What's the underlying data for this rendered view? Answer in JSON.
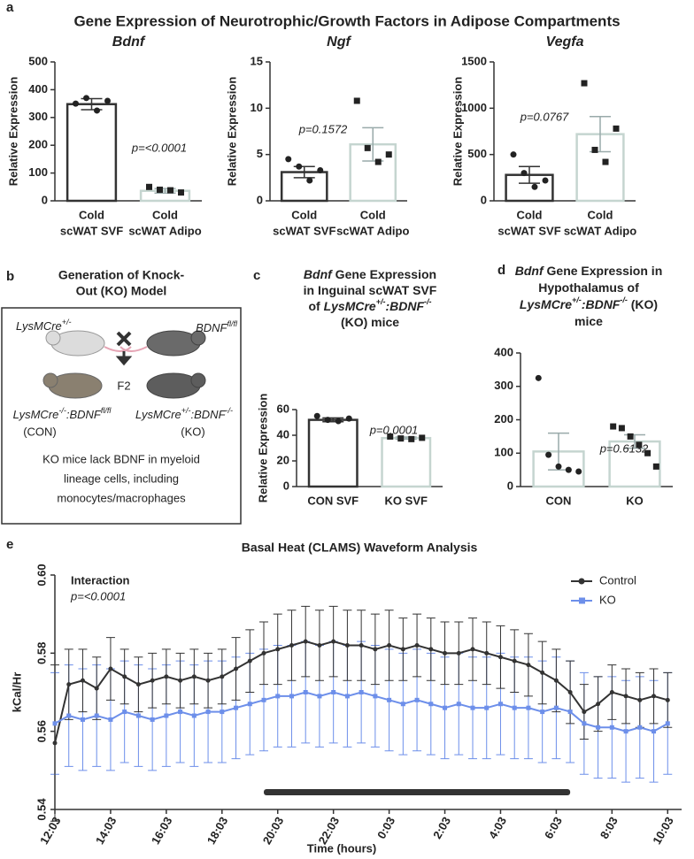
{
  "panel_labels": [
    "a",
    "b",
    "c",
    "d",
    "e"
  ],
  "figure_title": "Gene Expression of Neurotrophic/Growth Factors in Adipose Compartments",
  "diagram": {
    "title": [
      "Generation of Knock-",
      "Out (KO) Model"
    ],
    "parent1": [
      {
        "text": "LysMCre",
        "italic": true
      },
      {
        "text": "+/-",
        "italic": true,
        "sup": true
      }
    ],
    "parent2": [
      {
        "text": "BDNF",
        "italic": true
      },
      {
        "text": "fl/fl",
        "italic": true,
        "sup": true
      }
    ],
    "cross_label": "F2",
    "con_genotype": [
      {
        "text": "LysMCre",
        "italic": true
      },
      {
        "text": "-/-",
        "italic": true,
        "sup": true
      },
      {
        "text": ":BDNF",
        "italic": true
      },
      {
        "text": "fl/fl",
        "italic": true,
        "sup": true
      }
    ],
    "con_label": "(CON)",
    "ko_genotype": [
      {
        "text": "LysMCre",
        "italic": true
      },
      {
        "text": "+/-",
        "italic": true,
        "sup": true
      },
      {
        "text": ":BDNF",
        "italic": true
      },
      {
        "text": "-/-",
        "italic": true,
        "sup": true
      }
    ],
    "ko_label": "(KO)",
    "note": [
      "KO mice lack BDNF in myeloid",
      "lineage cells, including",
      "monocytes/macrophages"
    ]
  },
  "chart_data": [
    {
      "type": "bar",
      "title": "Bdnf",
      "categories": [
        [
          "Cold",
          "scWAT SVF"
        ],
        [
          "Cold",
          "scWAT Adipo"
        ]
      ],
      "values": [
        348,
        36
      ],
      "errors": [
        20,
        8
      ],
      "points": [
        [
          350,
          370,
          325,
          360
        ],
        [
          50,
          40,
          38,
          30
        ]
      ],
      "colors": [
        "#333333",
        "#c5d5d0"
      ],
      "ylim": [
        0,
        500
      ],
      "yticks": [
        0,
        100,
        200,
        300,
        400,
        500
      ],
      "ylabel": "Relative Expression",
      "annotation": "p=<0.0001"
    },
    {
      "type": "bar",
      "title": "Ngf",
      "categories": [
        [
          "Cold",
          "scWAT SVF"
        ],
        [
          "Cold",
          "scWAT Adipo"
        ]
      ],
      "values": [
        3.1,
        6.1
      ],
      "errors": [
        0.6,
        1.8
      ],
      "points": [
        [
          4.5,
          3.7,
          2.2,
          3.3
        ],
        [
          10.8,
          5.7,
          4.2,
          5.0
        ]
      ],
      "colors": [
        "#333333",
        "#c5d5d0"
      ],
      "ylim": [
        0,
        15
      ],
      "yticks": [
        0,
        5,
        10,
        15
      ],
      "ylabel": "Relative Expression",
      "annotation": "p=0.1572"
    },
    {
      "type": "bar",
      "title": "Vegfa",
      "categories": [
        [
          "Cold",
          "scWAT SVF"
        ],
        [
          "Cold",
          "scWAT Adipo"
        ]
      ],
      "values": [
        280,
        720
      ],
      "errors": [
        90,
        190
      ],
      "points": [
        [
          500,
          300,
          150,
          220
        ],
        [
          1270,
          550,
          420,
          780
        ]
      ],
      "colors": [
        "#333333",
        "#c5d5d0"
      ],
      "ylim": [
        0,
        1500
      ],
      "yticks": [
        0,
        500,
        1000,
        1500
      ],
      "ylabel": "Relative Expression",
      "annotation": "p=0.0767"
    },
    {
      "type": "bar",
      "title": [
        [
          {
            "text": "Bdnf",
            "italic": true
          },
          {
            "text": " Gene Expression"
          }
        ],
        [
          {
            "text": "in Inguinal scWAT SVF"
          }
        ],
        [
          {
            "text": "of "
          },
          {
            "text": "LysMCre",
            "italic": true
          },
          {
            "text": "+/-",
            "italic": true,
            "sup": true
          },
          {
            "text": ":BDNF",
            "italic": true
          },
          {
            "text": "-/-",
            "italic": true,
            "sup": true
          }
        ],
        [
          {
            "text": "(KO) mice"
          }
        ]
      ],
      "categories": [
        [
          "CON SVF"
        ],
        [
          "KO SVF"
        ]
      ],
      "values": [
        52,
        37.8
      ],
      "errors": [
        1.5,
        0.8
      ],
      "points": [
        [
          55,
          52,
          51,
          53
        ],
        [
          39,
          37.5,
          37,
          38
        ]
      ],
      "colors": [
        "#333333",
        "#c5d5d0"
      ],
      "ylim": [
        0,
        60
      ],
      "yticks": [
        0,
        20,
        40,
        60
      ],
      "ylabel": "Relative Expression",
      "annotation": "p=0.0001"
    },
    {
      "type": "bar",
      "title": [
        [
          {
            "text": "Bdnf",
            "italic": true
          },
          {
            "text": " Gene Expression in"
          }
        ],
        [
          {
            "text": "Hypothalamus of"
          }
        ],
        [
          {
            "text": "LysMCre",
            "italic": true
          },
          {
            "text": "+/-",
            "italic": true,
            "sup": true
          },
          {
            "text": ":BDNF",
            "italic": true
          },
          {
            "text": "-/-",
            "italic": true,
            "sup": true
          },
          {
            "text": " (KO)"
          }
        ],
        [
          {
            "text": "mice"
          }
        ]
      ],
      "categories": [
        [
          "CON"
        ],
        [
          "KO"
        ]
      ],
      "values": [
        105,
        135
      ],
      "errors": [
        55,
        20
      ],
      "points": [
        [
          325,
          95,
          60,
          50,
          45
        ],
        [
          180,
          175,
          150,
          125,
          100,
          60
        ]
      ],
      "colors": [
        "#c5d5d0",
        "#c5d5d0"
      ],
      "ylim": [
        0,
        400
      ],
      "yticks": [
        0,
        100,
        200,
        300,
        400
      ],
      "annotation": "p=0.6132"
    },
    {
      "type": "line",
      "title": "Basal Heat (CLAMS) Waveform Analysis",
      "ylabel": "kCal/Hr",
      "xlabel": "Time (hours)",
      "annotation": [
        "Interaction",
        "p=<0.0001"
      ],
      "legend": "top-right",
      "xlim": [
        0,
        22.5
      ],
      "ylim": [
        0.54,
        0.6
      ],
      "xticks": [
        {
          "value": 0,
          "label": "12:03"
        },
        {
          "value": 2,
          "label": "14:03"
        },
        {
          "value": 4,
          "label": "16:03"
        },
        {
          "value": 6,
          "label": "18:03"
        },
        {
          "value": 8,
          "label": "20:03"
        },
        {
          "value": 10,
          "label": "22:03"
        },
        {
          "value": 12,
          "label": "0:03"
        },
        {
          "value": 14,
          "label": "2:03"
        },
        {
          "value": 16,
          "label": "4:03"
        },
        {
          "value": 18,
          "label": "6:03"
        },
        {
          "value": 20,
          "label": "8:03"
        },
        {
          "value": 22,
          "label": "10:03"
        }
      ],
      "yticks": [
        0.54,
        0.56,
        0.58,
        {
          "value": 0.6,
          "label": "0.60"
        }
      ],
      "dark_period": [
        7.5,
        18.5
      ],
      "x": [
        0,
        0.5,
        1,
        1.5,
        2,
        2.5,
        3,
        3.5,
        4,
        4.5,
        5,
        5.5,
        6,
        6.5,
        7,
        7.5,
        8,
        8.5,
        9,
        9.5,
        10,
        10.5,
        11,
        11.5,
        12,
        12.5,
        13,
        13.5,
        14,
        14.5,
        15,
        15.5,
        16,
        16.5,
        17,
        17.5,
        18,
        18.5,
        19,
        19.5,
        20,
        20.5,
        21,
        21.5,
        22
      ],
      "series": [
        {
          "name": "Control",
          "color": "#333333",
          "marker": "circle",
          "values": [
            0.557,
            0.572,
            0.573,
            0.571,
            0.576,
            0.574,
            0.572,
            0.573,
            0.574,
            0.573,
            0.574,
            0.573,
            0.574,
            0.576,
            0.578,
            0.58,
            0.581,
            0.582,
            0.583,
            0.582,
            0.583,
            0.582,
            0.582,
            0.581,
            0.582,
            0.581,
            0.582,
            0.581,
            0.58,
            0.58,
            0.581,
            0.58,
            0.579,
            0.578,
            0.577,
            0.575,
            0.573,
            0.57,
            0.565,
            0.567,
            0.57,
            0.569,
            0.568,
            0.569,
            0.568
          ],
          "errors": [
            0.02,
            0.009,
            0.008,
            0.008,
            0.008,
            0.007,
            0.007,
            0.007,
            0.007,
            0.007,
            0.007,
            0.007,
            0.007,
            0.008,
            0.008,
            0.008,
            0.009,
            0.009,
            0.009,
            0.009,
            0.009,
            0.009,
            0.009,
            0.009,
            0.009,
            0.008,
            0.008,
            0.008,
            0.008,
            0.008,
            0.008,
            0.008,
            0.008,
            0.008,
            0.008,
            0.008,
            0.008,
            0.008,
            0.007,
            0.007,
            0.007,
            0.007,
            0.007,
            0.007,
            0.007
          ]
        },
        {
          "name": "KO",
          "color": "#6d8fea",
          "marker": "square",
          "values": [
            0.562,
            0.564,
            0.563,
            0.564,
            0.563,
            0.565,
            0.564,
            0.563,
            0.564,
            0.565,
            0.564,
            0.565,
            0.565,
            0.566,
            0.567,
            0.568,
            0.569,
            0.569,
            0.57,
            0.569,
            0.57,
            0.569,
            0.57,
            0.569,
            0.568,
            0.567,
            0.568,
            0.567,
            0.566,
            0.567,
            0.566,
            0.566,
            0.567,
            0.566,
            0.566,
            0.565,
            0.566,
            0.565,
            0.562,
            0.561,
            0.561,
            0.56,
            0.561,
            0.56,
            0.562
          ],
          "errors": [
            0.013,
            0.013,
            0.013,
            0.013,
            0.013,
            0.013,
            0.013,
            0.013,
            0.013,
            0.013,
            0.013,
            0.013,
            0.013,
            0.013,
            0.013,
            0.013,
            0.013,
            0.013,
            0.013,
            0.013,
            0.013,
            0.013,
            0.013,
            0.013,
            0.013,
            0.013,
            0.013,
            0.013,
            0.013,
            0.013,
            0.013,
            0.013,
            0.013,
            0.013,
            0.013,
            0.013,
            0.013,
            0.013,
            0.013,
            0.013,
            0.013,
            0.013,
            0.013,
            0.013,
            0.013
          ]
        }
      ]
    }
  ]
}
